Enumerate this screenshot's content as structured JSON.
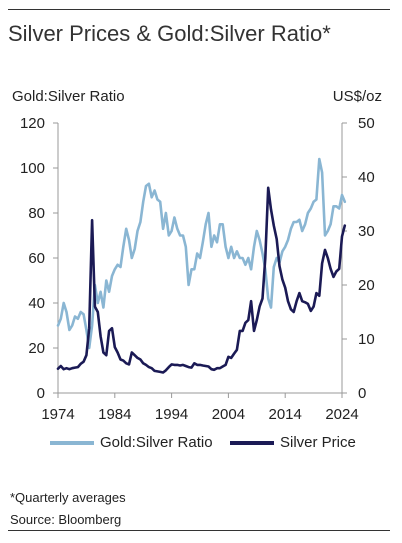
{
  "title": "Silver Prices & Gold:Silver Ratio*",
  "left_axis_label": "Gold:Silver Ratio",
  "right_axis_label": "US$/oz",
  "footnote": "*Quarterly averages",
  "source": "Source: Bloomberg",
  "colors": {
    "ratio": "#8ab6d3",
    "silver": "#1b1a55",
    "axis": "#999999",
    "rule": "#333333"
  },
  "chart_data": {
    "type": "line",
    "x_ticks": [
      "1974",
      "1984",
      "1994",
      "2004",
      "2014",
      "2024"
    ],
    "y_left_ticks": [
      "0",
      "20",
      "40",
      "60",
      "80",
      "100",
      "120"
    ],
    "y_right_ticks": [
      "0",
      "10",
      "20",
      "30",
      "40",
      "50"
    ],
    "xlim": [
      1974,
      2024
    ],
    "ylim_left": [
      0,
      120
    ],
    "ylim_right": [
      0,
      50
    ],
    "grid": false,
    "legend_position": "bottom",
    "series": [
      {
        "name": "Gold:Silver Ratio",
        "axis": "left",
        "x": [
          1974,
          1974.5,
          1975,
          1975.5,
          1976,
          1976.5,
          1977,
          1977.5,
          1978,
          1978.5,
          1979,
          1979.5,
          1980,
          1980.5,
          1981,
          1981.5,
          1982,
          1982.5,
          1983,
          1983.5,
          1984,
          1984.5,
          1985,
          1985.5,
          1986,
          1986.5,
          1987,
          1987.5,
          1988,
          1988.5,
          1989,
          1989.5,
          1990,
          1990.5,
          1991,
          1991.5,
          1992,
          1992.5,
          1993,
          1993.5,
          1994,
          1994.5,
          1995,
          1995.5,
          1996,
          1996.5,
          1997,
          1997.5,
          1998,
          1998.5,
          1999,
          1999.5,
          2000,
          2000.5,
          2001,
          2001.5,
          2002,
          2002.5,
          2003,
          2003.5,
          2004,
          2004.5,
          2005,
          2005.5,
          2006,
          2006.5,
          2007,
          2007.5,
          2008,
          2008.5,
          2009,
          2009.5,
          2010,
          2010.5,
          2011,
          2011.5,
          2012,
          2012.5,
          2013,
          2013.5,
          2014,
          2014.5,
          2015,
          2015.5,
          2016,
          2016.5,
          2017,
          2017.5,
          2018,
          2018.5,
          2019,
          2019.5,
          2020,
          2020.5,
          2021,
          2021.5,
          2022,
          2022.5,
          2023,
          2023.5,
          2024,
          2024.5
        ],
        "values": [
          30,
          33,
          40,
          36,
          28,
          30,
          34,
          33,
          36,
          35,
          28,
          20,
          30,
          48,
          40,
          45,
          38,
          50,
          45,
          52,
          55,
          57,
          56,
          65,
          73,
          68,
          60,
          64,
          72,
          76,
          85,
          92,
          93,
          87,
          90,
          86,
          85,
          73,
          80,
          70,
          72,
          78,
          73,
          70,
          70,
          65,
          48,
          55,
          55,
          62,
          60,
          67,
          75,
          80,
          65,
          70,
          67,
          75,
          75,
          65,
          60,
          65,
          60,
          63,
          60,
          60,
          57,
          60,
          55,
          65,
          72,
          68,
          62,
          55,
          42,
          38,
          56,
          60,
          58,
          63,
          65,
          68,
          73,
          76,
          76,
          77,
          72,
          75,
          80,
          82,
          85,
          86,
          104,
          98,
          70,
          72,
          75,
          83,
          83,
          82,
          88,
          85
        ]
      },
      {
        "name": "Silver Price",
        "axis": "right",
        "x": [
          1974,
          1974.5,
          1975,
          1975.5,
          1976,
          1976.5,
          1977,
          1977.5,
          1978,
          1978.5,
          1979,
          1979.5,
          1980,
          1980.5,
          1981,
          1981.5,
          1982,
          1982.5,
          1983,
          1983.5,
          1984,
          1984.5,
          1985,
          1985.5,
          1986,
          1986.5,
          1987,
          1987.5,
          1988,
          1988.5,
          1989,
          1989.5,
          1990,
          1990.5,
          1991,
          1991.5,
          1992,
          1992.5,
          1993,
          1993.5,
          1994,
          1994.5,
          1995,
          1995.5,
          1996,
          1996.5,
          1997,
          1997.5,
          1998,
          1998.5,
          1999,
          1999.5,
          2000,
          2000.5,
          2001,
          2001.5,
          2002,
          2002.5,
          2003,
          2003.5,
          2004,
          2004.5,
          2005,
          2005.5,
          2006,
          2006.5,
          2007,
          2007.5,
          2008,
          2008.5,
          2009,
          2009.5,
          2010,
          2010.5,
          2011,
          2011.5,
          2012,
          2012.5,
          2013,
          2013.5,
          2014,
          2014.5,
          2015,
          2015.5,
          2016,
          2016.5,
          2017,
          2017.5,
          2018,
          2018.5,
          2019,
          2019.5,
          2020,
          2020.5,
          2021,
          2021.5,
          2022,
          2022.5,
          2023,
          2023.5,
          2024,
          2024.5
        ],
        "values": [
          4.5,
          5.0,
          4.4,
          4.6,
          4.4,
          4.6,
          4.7,
          4.8,
          5.4,
          5.8,
          7.0,
          12.0,
          32.0,
          16.0,
          15.0,
          10.5,
          7.5,
          7.0,
          11.5,
          12.0,
          8.5,
          7.5,
          6.2,
          6.0,
          5.5,
          5.3,
          7.5,
          7.0,
          6.5,
          6.2,
          5.5,
          5.2,
          4.8,
          4.6,
          4.1,
          4.0,
          3.9,
          3.8,
          4.2,
          4.8,
          5.3,
          5.2,
          5.2,
          5.1,
          5.2,
          5.0,
          4.8,
          4.7,
          5.5,
          5.2,
          5.2,
          5.1,
          5.0,
          4.9,
          4.4,
          4.3,
          4.6,
          4.6,
          4.9,
          5.2,
          6.7,
          6.5,
          7.3,
          8.0,
          11.5,
          11.5,
          13.0,
          13.5,
          17.0,
          11.5,
          13.5,
          16.0,
          17.5,
          25.0,
          38.0,
          34.0,
          31.0,
          28.5,
          23.5,
          21.0,
          19.5,
          17.0,
          15.5,
          15.0,
          17.0,
          18.5,
          17.0,
          16.8,
          16.5,
          15.2,
          16.0,
          18.5,
          18.0,
          24.0,
          26.5,
          25.0,
          23.0,
          21.5,
          22.5,
          23.0,
          29.0,
          31.0
        ]
      }
    ]
  }
}
